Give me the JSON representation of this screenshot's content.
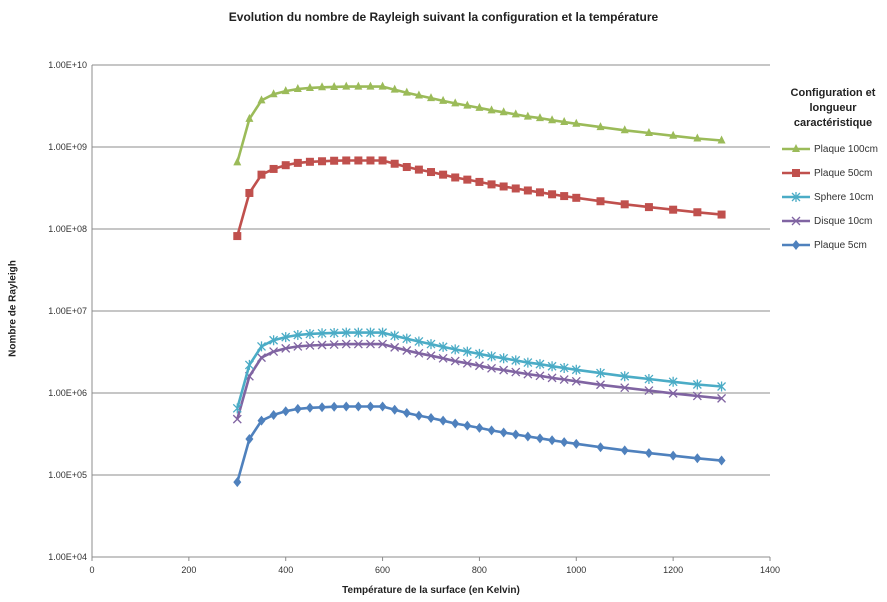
{
  "chart_data": {
    "type": "line",
    "title": "Evolution du nombre de Rayleigh suivant la configuration et la température",
    "xlabel": "Température de la surface (en Kelvin)",
    "ylabel": "Nombre de Rayleigh",
    "xlim": [
      0,
      1400
    ],
    "ylim": [
      10000,
      10000000000
    ],
    "y_scale": "log",
    "x_ticks": [
      "0",
      "200",
      "400",
      "600",
      "800",
      "1000",
      "1200",
      "1400"
    ],
    "y_ticks": [
      "1.00E+04",
      "1.00E+05",
      "1.00E+06",
      "1.00E+07",
      "1.00E+08",
      "1.00E+09",
      "1.00E+10"
    ],
    "grid": "horizontal",
    "legend_position": "right",
    "legend_title": "Configuration et longueur caractéristique",
    "x": [
      300,
      325,
      350,
      375,
      400,
      425,
      450,
      475,
      500,
      525,
      550,
      575,
      600,
      625,
      650,
      675,
      700,
      725,
      750,
      775,
      800,
      825,
      850,
      875,
      900,
      925,
      950,
      975,
      1000,
      1050,
      1100,
      1150,
      1200,
      1250,
      1300
    ],
    "series": [
      {
        "name": "Plaque 100cm",
        "color": "#9bbb59",
        "marker": "triangle",
        "values": [
          650000000,
          2200000000,
          3700000000,
          4400000000,
          4800000000,
          5100000000,
          5250000000,
          5350000000,
          5400000000,
          5450000000,
          5450000000,
          5450000000,
          5450000000,
          5000000000,
          4600000000,
          4250000000,
          3950000000,
          3650000000,
          3400000000,
          3200000000,
          3000000000,
          2800000000,
          2650000000,
          2500000000,
          2350000000,
          2250000000,
          2120000000,
          2020000000,
          1920000000,
          1750000000,
          1600000000,
          1480000000,
          1370000000,
          1270000000,
          1200000000
        ]
      },
      {
        "name": "Plaque 50cm",
        "color": "#c0504d",
        "marker": "square",
        "values": [
          82000000,
          275000000,
          460000000,
          540000000,
          600000000,
          640000000,
          660000000,
          670000000,
          680000000,
          685000000,
          685000000,
          685000000,
          685000000,
          625000000,
          570000000,
          530000000,
          495000000,
          460000000,
          425000000,
          400000000,
          375000000,
          350000000,
          330000000,
          312000000,
          295000000,
          280000000,
          265000000,
          252000000,
          240000000,
          218000000,
          200000000,
          185000000,
          172000000,
          160000000,
          150000000
        ]
      },
      {
        "name": "Sphere 10cm",
        "color": "#4bacc6",
        "marker": "star",
        "values": [
          650000,
          2200000,
          3700000,
          4400000,
          4800000,
          5100000,
          5250000,
          5350000,
          5400000,
          5450000,
          5450000,
          5450000,
          5450000,
          5000000,
          4600000,
          4250000,
          3950000,
          3650000,
          3400000,
          3200000,
          3000000,
          2800000,
          2650000,
          2500000,
          2350000,
          2250000,
          2120000,
          2020000,
          1920000,
          1750000,
          1600000,
          1480000,
          1370000,
          1270000,
          1200000
        ]
      },
      {
        "name": "Disque 10cm",
        "color": "#8064a2",
        "marker": "x",
        "values": [
          480000,
          1600000,
          2700000,
          3200000,
          3500000,
          3700000,
          3800000,
          3850000,
          3900000,
          3950000,
          3950000,
          3950000,
          3950000,
          3600000,
          3300000,
          3050000,
          2850000,
          2650000,
          2450000,
          2300000,
          2150000,
          2000000,
          1900000,
          1800000,
          1700000,
          1620000,
          1530000,
          1460000,
          1390000,
          1260000,
          1160000,
          1070000,
          990000,
          920000,
          860000
        ]
      },
      {
        "name": "Plaque 5cm",
        "color": "#4f81bd",
        "marker": "diamond",
        "values": [
          82000,
          275000,
          460000,
          540000,
          600000,
          640000,
          660000,
          670000,
          680000,
          685000,
          685000,
          685000,
          685000,
          625000,
          570000,
          530000,
          495000,
          460000,
          425000,
          400000,
          375000,
          350000,
          330000,
          312000,
          295000,
          280000,
          265000,
          252000,
          240000,
          218000,
          200000,
          185000,
          172000,
          160000,
          150000
        ]
      }
    ]
  }
}
